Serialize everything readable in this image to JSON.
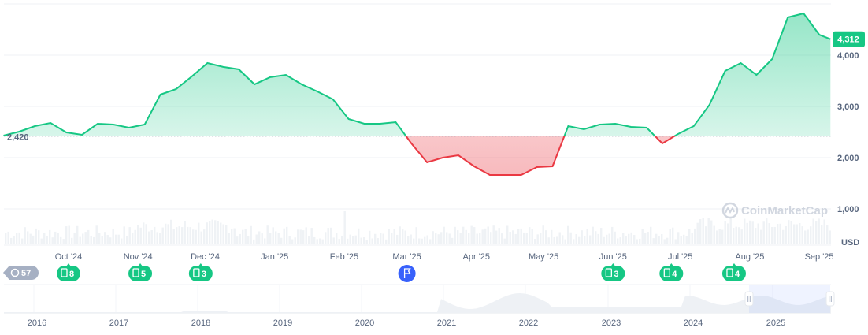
{
  "chart_data": {
    "type": "area",
    "title": "",
    "xlabel": "",
    "ylabel": "",
    "currency_label": "USD",
    "baseline_value": 2420,
    "baseline_label": "2,420",
    "current_value": 4312,
    "current_label": "4,312",
    "ylim": [
      0,
      5000
    ],
    "y_ticks": [
      {
        "value": 1000,
        "label": "1,000"
      },
      {
        "value": 2000,
        "label": "2,000"
      },
      {
        "value": 3000,
        "label": "3,000"
      },
      {
        "value": 4000,
        "label": "4,000"
      }
    ],
    "x_ticks": [
      {
        "date": "2024-10-01",
        "label": "Oct '24"
      },
      {
        "date": "2024-11-01",
        "label": "Nov '24"
      },
      {
        "date": "2024-12-01",
        "label": "Dec '24"
      },
      {
        "date": "2025-01-01",
        "label": "Jan '25"
      },
      {
        "date": "2025-02-01",
        "label": "Feb '25"
      },
      {
        "date": "2025-03-01",
        "label": "Mar '25"
      },
      {
        "date": "2025-04-01",
        "label": "Apr '25"
      },
      {
        "date": "2025-05-01",
        "label": "May '25"
      },
      {
        "date": "2025-06-01",
        "label": "Jun '25"
      },
      {
        "date": "2025-07-01",
        "label": "Jul '25"
      },
      {
        "date": "2025-08-01",
        "label": "Aug '25"
      },
      {
        "date": "2025-09-01",
        "label": "Sep '25"
      }
    ],
    "grid": true,
    "colors": {
      "up": "#16c784",
      "down": "#ea3943",
      "flag": "#3861fb",
      "history": "#a6b0c3"
    },
    "series": [
      {
        "values": [
          [
            "2024-09-02",
            2430
          ],
          [
            "2024-09-09",
            2508
          ],
          [
            "2024-09-16",
            2615
          ],
          [
            "2024-09-23",
            2677
          ],
          [
            "2024-09-30",
            2492
          ],
          [
            "2024-10-07",
            2446
          ],
          [
            "2024-10-14",
            2662
          ],
          [
            "2024-10-21",
            2646
          ],
          [
            "2024-10-28",
            2585
          ],
          [
            "2024-11-04",
            2646
          ],
          [
            "2024-11-11",
            3230
          ],
          [
            "2024-11-18",
            3338
          ],
          [
            "2024-11-25",
            3585
          ],
          [
            "2024-12-02",
            3846
          ],
          [
            "2024-12-09",
            3770
          ],
          [
            "2024-12-16",
            3723
          ],
          [
            "2024-12-23",
            3430
          ],
          [
            "2024-12-30",
            3570
          ],
          [
            "2025-01-06",
            3615
          ],
          [
            "2025-01-13",
            3430
          ],
          [
            "2025-01-20",
            3292
          ],
          [
            "2025-01-27",
            3138
          ],
          [
            "2025-02-03",
            2754
          ],
          [
            "2025-02-10",
            2662
          ],
          [
            "2025-02-17",
            2662
          ],
          [
            "2025-02-24",
            2692
          ],
          [
            "2025-03-03",
            2277
          ],
          [
            "2025-03-10",
            1908
          ],
          [
            "2025-03-17",
            2000
          ],
          [
            "2025-03-24",
            2046
          ],
          [
            "2025-03-31",
            1831
          ],
          [
            "2025-04-07",
            1662
          ],
          [
            "2025-04-14",
            1662
          ],
          [
            "2025-04-21",
            1662
          ],
          [
            "2025-04-28",
            1815
          ],
          [
            "2025-05-05",
            1831
          ],
          [
            "2025-05-12",
            2615
          ],
          [
            "2025-05-19",
            2554
          ],
          [
            "2025-05-26",
            2646
          ],
          [
            "2025-06-02",
            2662
          ],
          [
            "2025-06-09",
            2600
          ],
          [
            "2025-06-16",
            2585
          ],
          [
            "2025-06-23",
            2277
          ],
          [
            "2025-06-30",
            2462
          ],
          [
            "2025-07-07",
            2615
          ],
          [
            "2025-07-14",
            3031
          ],
          [
            "2025-07-21",
            3692
          ],
          [
            "2025-07-28",
            3846
          ],
          [
            "2025-08-04",
            3615
          ],
          [
            "2025-08-11",
            3923
          ],
          [
            "2025-08-18",
            4738
          ],
          [
            "2025-08-25",
            4815
          ],
          [
            "2025-09-01",
            4400
          ],
          [
            "2025-09-06",
            4312
          ]
        ]
      }
    ],
    "events": [
      {
        "type": "history",
        "label": "57"
      },
      {
        "type": "news",
        "date": "2024-10-01",
        "label": "8"
      },
      {
        "type": "news",
        "date": "2024-11-02",
        "label": "5"
      },
      {
        "type": "news",
        "date": "2024-11-29",
        "label": "3"
      },
      {
        "type": "flag",
        "date": "2025-03-01",
        "label": ""
      },
      {
        "type": "news",
        "date": "2025-06-01",
        "label": "3"
      },
      {
        "type": "news",
        "date": "2025-06-27",
        "label": "4"
      },
      {
        "type": "news",
        "date": "2025-07-25",
        "label": "4"
      }
    ],
    "navigator": {
      "year_labels": [
        "2016",
        "2017",
        "2018",
        "2019",
        "2020",
        "2021",
        "2022",
        "2023",
        "2024",
        "2025"
      ]
    },
    "watermark": "CoinMarketCap"
  }
}
